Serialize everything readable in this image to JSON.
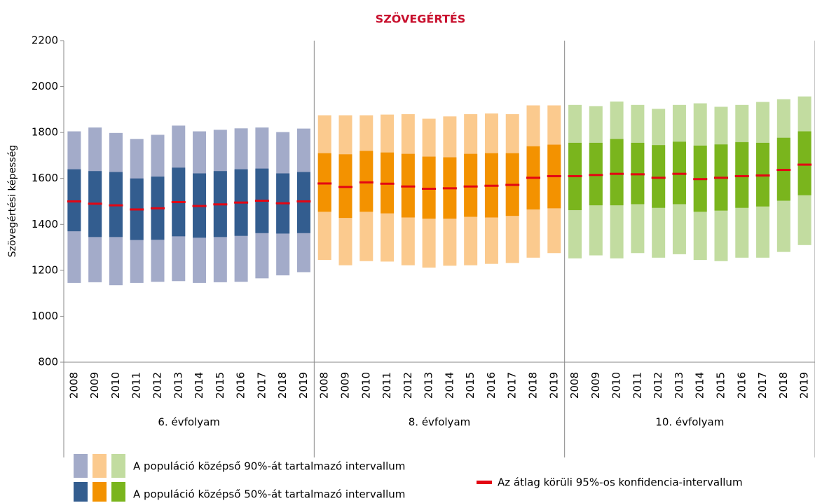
{
  "chart_data": {
    "type": "range",
    "title": "SZÖVEGÉRTÉS",
    "y_label": "Szövegértési képesség",
    "ylim": [
      800,
      2200
    ],
    "yticks": [
      800,
      1000,
      1200,
      1400,
      1600,
      1800,
      2000,
      2200
    ],
    "mean_color": "#e30613",
    "title_color": "#c8102e",
    "groups": [
      {
        "name": "6. évfolyam",
        "light_color": "#a3abc9",
        "dark_color": "#335d8f",
        "categories": [
          "2008",
          "2009",
          "2010",
          "2011",
          "2012",
          "2013",
          "2014",
          "2015",
          "2016",
          "2017",
          "2018",
          "2019"
        ],
        "p5": [
          1145,
          1148,
          1135,
          1145,
          1150,
          1153,
          1145,
          1148,
          1150,
          1165,
          1178,
          1192
        ],
        "p25": [
          1370,
          1345,
          1345,
          1332,
          1333,
          1348,
          1342,
          1345,
          1350,
          1362,
          1360,
          1362
        ],
        "mean": [
          1500,
          1490,
          1483,
          1465,
          1470,
          1497,
          1480,
          1487,
          1495,
          1503,
          1492,
          1500
        ],
        "p75": [
          1640,
          1632,
          1628,
          1600,
          1608,
          1647,
          1622,
          1632,
          1640,
          1643,
          1622,
          1628
        ],
        "p95": [
          1805,
          1822,
          1798,
          1772,
          1790,
          1830,
          1805,
          1812,
          1818,
          1822,
          1802,
          1817
        ]
      },
      {
        "name": "8. évfolyam",
        "light_color": "#fbca8e",
        "dark_color": "#f39200",
        "categories": [
          "2008",
          "2009",
          "2010",
          "2011",
          "2012",
          "2013",
          "2014",
          "2015",
          "2016",
          "2017",
          "2018",
          "2019"
        ],
        "p5": [
          1245,
          1222,
          1240,
          1238,
          1222,
          1212,
          1220,
          1222,
          1228,
          1232,
          1255,
          1275
        ],
        "p25": [
          1455,
          1428,
          1455,
          1448,
          1430,
          1425,
          1425,
          1433,
          1430,
          1437,
          1465,
          1470
        ],
        "mean": [
          1578,
          1563,
          1583,
          1577,
          1565,
          1555,
          1557,
          1565,
          1568,
          1572,
          1603,
          1610
        ],
        "p75": [
          1710,
          1705,
          1720,
          1713,
          1707,
          1695,
          1692,
          1707,
          1710,
          1710,
          1740,
          1747
        ],
        "p95": [
          1875,
          1875,
          1875,
          1878,
          1880,
          1860,
          1870,
          1880,
          1883,
          1880,
          1918,
          1918
        ]
      },
      {
        "name": "10. évfolyam",
        "light_color": "#c2dca0",
        "dark_color": "#7ab51d",
        "categories": [
          "2008",
          "2009",
          "2010",
          "2011",
          "2012",
          "2013",
          "2014",
          "2015",
          "2016",
          "2017",
          "2018",
          "2019"
        ],
        "p5": [
          1252,
          1265,
          1252,
          1275,
          1255,
          1270,
          1245,
          1240,
          1255,
          1255,
          1280,
          1310
        ],
        "p25": [
          1462,
          1483,
          1483,
          1488,
          1472,
          1488,
          1455,
          1460,
          1472,
          1478,
          1503,
          1527
        ],
        "mean": [
          1610,
          1615,
          1620,
          1618,
          1603,
          1620,
          1597,
          1603,
          1610,
          1613,
          1637,
          1660
        ],
        "p75": [
          1755,
          1755,
          1772,
          1755,
          1745,
          1760,
          1743,
          1748,
          1758,
          1755,
          1777,
          1805
        ],
        "p95": [
          1920,
          1915,
          1935,
          1920,
          1903,
          1920,
          1927,
          1912,
          1920,
          1933,
          1945,
          1957
        ]
      }
    ],
    "legend": {
      "p90": "A populáció középső 90%-át tartalmazó intervallum",
      "p50": "A populáció középső 50%-át tartalmazó intervallum",
      "ci": "Az átlag körüli 95%-os konfidencia-intervallum"
    }
  }
}
